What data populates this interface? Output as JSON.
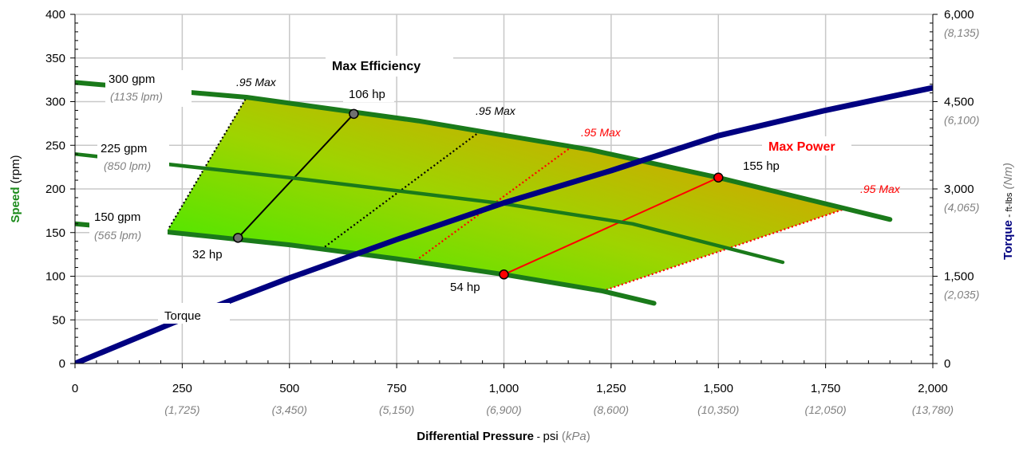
{
  "chart_data": {
    "type": "line",
    "x_axis": {
      "range": [
        0,
        2000
      ],
      "ticks": [
        0,
        250,
        500,
        750,
        1000,
        1250,
        1500,
        1750,
        2000
      ],
      "tick_labels": [
        "0",
        "250",
        "500",
        "750",
        "1,000",
        "1,250",
        "1,500",
        "1,750",
        "2,000"
      ],
      "secondary_tick_labels": [
        "",
        "(1,725)",
        "(3,450)",
        "(5,150)",
        "(6,900)",
        "(8,600)",
        "(10,350)",
        "(12,050)",
        "(13,780)"
      ],
      "label": {
        "bold": "Differential Pressure",
        "dash": " - ",
        "unit": "psi",
        "open": " (",
        "alt_unit": "kPa",
        "close": ")"
      }
    },
    "y_axis_left": {
      "range": [
        0,
        400
      ],
      "ticks": [
        0,
        50,
        100,
        150,
        200,
        250,
        300,
        350,
        400
      ],
      "tick_labels": [
        "0",
        "50",
        "100",
        "150",
        "200",
        "250",
        "300",
        "350",
        "400"
      ],
      "label": {
        "bold": "Speed",
        "unit": " (rpm)"
      }
    },
    "y_axis_right": {
      "range": [
        0,
        6000
      ],
      "ticks": [
        0,
        1500,
        3000,
        4500,
        6000
      ],
      "tick_labels": [
        "0",
        "1,500",
        "3,000",
        "4,500",
        "6,000"
      ],
      "secondary_tick_labels": [
        "",
        "(2,035)",
        "(4,065)",
        "(6,100)",
        "(8,135)"
      ],
      "label": {
        "bold": "Torque",
        "dash": " - ",
        "unit": "ft-lbs",
        "alt_unit": "(Nm)"
      }
    },
    "grid": true,
    "series": [
      {
        "name": "300 gpm",
        "sub_label": "(1135 lpm)",
        "color": "#1a7a1a",
        "points": [
          [
            0,
            322
          ],
          [
            400,
            305
          ],
          [
            800,
            278
          ],
          [
            1200,
            245
          ],
          [
            1500,
            213
          ],
          [
            1900,
            165
          ]
        ]
      },
      {
        "name": "225 gpm",
        "sub_label": "(850 lpm)",
        "color": "#1a7a1a",
        "points": [
          [
            0,
            240
          ],
          [
            500,
            213
          ],
          [
            1000,
            183
          ],
          [
            1300,
            160
          ],
          [
            1650,
            116
          ]
        ]
      },
      {
        "name": "150 gpm",
        "sub_label": "(565 lpm)",
        "color": "#1a7a1a",
        "points": [
          [
            0,
            160
          ],
          [
            210,
            151
          ],
          [
            500,
            136
          ],
          [
            750,
            120
          ],
          [
            1000,
            102
          ],
          [
            1230,
            83
          ],
          [
            1350,
            69
          ]
        ]
      },
      {
        "name": "Torque",
        "color": "#000080",
        "points": [
          [
            0,
            0
          ],
          [
            250,
            51
          ],
          [
            500,
            98
          ],
          [
            750,
            142
          ],
          [
            1000,
            184
          ],
          [
            1250,
            221
          ],
          [
            1500,
            261
          ],
          [
            1750,
            290
          ],
          [
            2000,
            316
          ]
        ]
      }
    ],
    "envelope": [
      [
        215,
        152
      ],
      [
        400,
        305
      ],
      [
        800,
        278
      ],
      [
        1200,
        245
      ],
      [
        1500,
        213
      ],
      [
        1800,
        178
      ],
      [
        1230,
        83
      ],
      [
        1000,
        102
      ],
      [
        750,
        120
      ],
      [
        500,
        136
      ],
      [
        215,
        152
      ]
    ],
    "efficiency_lines": [
      {
        "label": ".95 Max",
        "color": "#000000",
        "style": "dotted",
        "points": [
          [
            215,
            152
          ],
          [
            400,
            305
          ]
        ]
      },
      {
        "label": "",
        "color": "#000000",
        "style": "solid",
        "points": [
          [
            380,
            144
          ],
          [
            650,
            286
          ]
        ]
      },
      {
        "label": ".95 Max",
        "color": "#000000",
        "style": "dotted",
        "points": [
          [
            575,
            131
          ],
          [
            945,
            266
          ]
        ]
      },
      {
        "label": ".95 Max",
        "color": "#ff0000",
        "style": "dotted",
        "points": [
          [
            795,
            118
          ],
          [
            1160,
            249
          ]
        ]
      },
      {
        "label": "",
        "color": "#ff0000",
        "style": "solid",
        "points": [
          [
            1000,
            102
          ],
          [
            1500,
            213
          ]
        ]
      },
      {
        "label": ".95 Max",
        "color": "#ff0000",
        "style": "dotted",
        "points": [
          [
            1230,
            83
          ],
          [
            1800,
            178
          ]
        ]
      }
    ],
    "markers": [
      {
        "label": "106 hp",
        "x": 650,
        "y": 286,
        "color": "#707070"
      },
      {
        "label": "32 hp",
        "x": 380,
        "y": 144,
        "color": "#707070"
      },
      {
        "label": "155 hp",
        "x": 1500,
        "y": 213,
        "color": "#ff0000"
      },
      {
        "label": "54 hp",
        "x": 1000,
        "y": 102,
        "color": "#ff0000"
      }
    ],
    "annotations": {
      "max_efficiency": "Max Efficiency",
      "max_power": "Max Power",
      "torque": "Torque"
    }
  },
  "colors": {
    "flow_lines": "#1a7a1a",
    "torque": "#000080",
    "max_power": "#ff0000",
    "grid": "#c8c8c8",
    "speed_label": "#1a8a1a"
  }
}
